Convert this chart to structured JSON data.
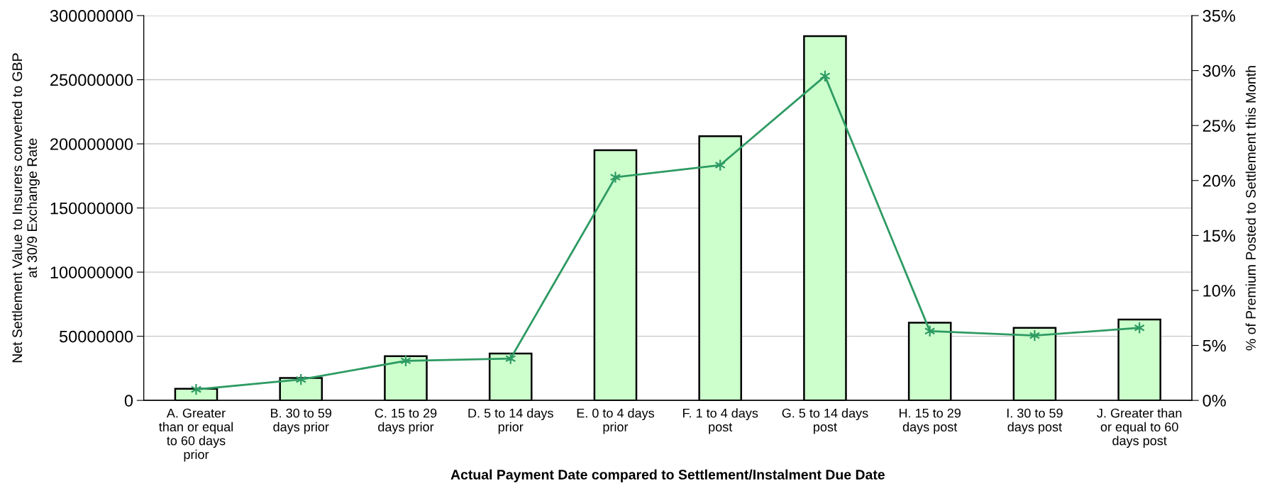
{
  "chart_data": {
    "type": "bar",
    "xlabel": "Actual Payment Date compared to Settlement/Instalment Due Date",
    "ylabel": "Net Settlement Value to Insurers converted to GBP\nat 30/9 Exchange Rate",
    "y2label": "% of Premium Posted to Settlement this Month",
    "categories": [
      "A. Greater\nthan or equal\nto 60 days\nprior",
      "B. 30 to 59\ndays prior",
      "C. 15 to 29\ndays prior",
      "D. 5 to 14 days\nprior",
      "E. 0 to 4 days\nprior",
      "F. 1 to 4 days\npost",
      "G. 5 to 14 days\npost",
      "H. 15 to 29\ndays post",
      "I. 30 to 59\ndays post",
      "J. Greater than\nor equal to 60\ndays post"
    ],
    "series": [
      {
        "color": "#ccffcc",
        "values": [
          9000000,
          17500000,
          34500000,
          36500000,
          195000000,
          206000000,
          284000000,
          60500000,
          56500000,
          63000000
        ]
      },
      {
        "type": "line",
        "axis": "y2",
        "color": "#2e9b63",
        "marker": "cross",
        "line_style": "solid",
        "values": [
          1.0,
          1.9,
          3.6,
          3.8,
          20.3,
          21.4,
          29.5,
          6.3,
          5.9,
          6.6
        ]
      }
    ],
    "ylim": [
      0,
      300000000
    ],
    "yticks": [
      0,
      50000000,
      100000000,
      150000000,
      200000000,
      250000000,
      300000000
    ],
    "y2lim": [
      0,
      35
    ],
    "y2ticks": [
      {
        "value": 0,
        "label": "0%"
      },
      {
        "value": 5,
        "label": "5%"
      },
      {
        "value": 10,
        "label": "10%"
      },
      {
        "value": 15,
        "label": "15%"
      },
      {
        "value": 20,
        "label": "20%"
      },
      {
        "value": 25,
        "label": "25%"
      },
      {
        "value": 30,
        "label": "30%"
      },
      {
        "value": 35,
        "label": "35%"
      }
    ],
    "grid": "y",
    "legend": false
  }
}
